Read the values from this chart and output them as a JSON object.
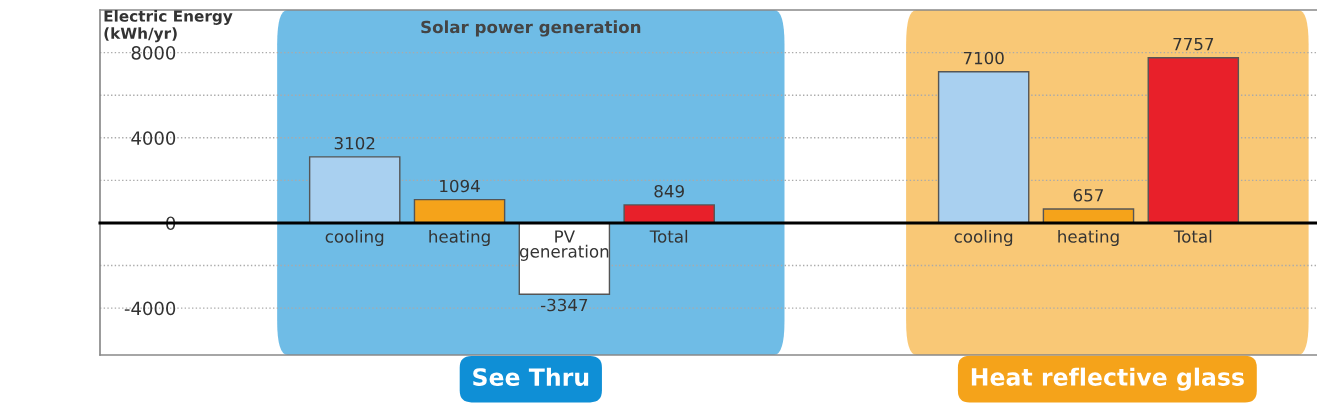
{
  "chart_data": {
    "type": "bar",
    "ylabel": "Electric Energy\n(kWh/yr)",
    "categories": [
      "cooling",
      "heating",
      "PV\ngeneration",
      "Total",
      null,
      null,
      "cooling",
      "heating",
      "Total"
    ],
    "values": [
      3102,
      1094,
      -3347,
      849,
      null,
      null,
      7100,
      657,
      7757
    ],
    "colors": [
      "#a9d0f0",
      "#f5a31a",
      "#ffffff",
      "#e8202a",
      null,
      null,
      "#a9d0f0",
      "#f5a31a",
      "#e8202a"
    ],
    "data_labels": true,
    "ylim": [
      -6200,
      10000
    ],
    "yticks": [
      {
        "value": -4000,
        "label": "-4000"
      },
      {
        "value": -2000,
        "label": null
      },
      0,
      {
        "value": 2000,
        "label": null
      },
      4000,
      {
        "value": 6000,
        "label": null
      },
      8000
    ],
    "grid": "y",
    "annotations": [
      "Solar power generation",
      "See Thru",
      "Heat reflective glass"
    ]
  }
}
